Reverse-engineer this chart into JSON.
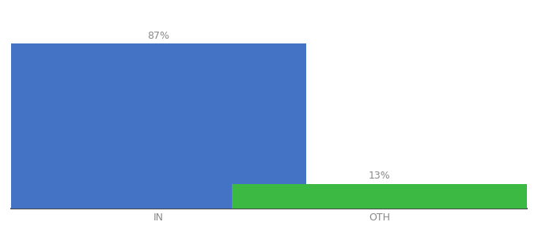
{
  "categories": [
    "IN",
    "OTH"
  ],
  "values": [
    87,
    13
  ],
  "bar_colors": [
    "#4472c4",
    "#3cb943"
  ],
  "value_labels": [
    "87%",
    "13%"
  ],
  "background_color": "#ffffff",
  "bar_width": 0.6,
  "x_positions": [
    0.3,
    0.75
  ],
  "xlim": [
    0.0,
    1.05
  ],
  "ylim": [
    0,
    100
  ],
  "label_fontsize": 9,
  "tick_fontsize": 9,
  "label_color": "#888888",
  "spine_color": "#222222"
}
